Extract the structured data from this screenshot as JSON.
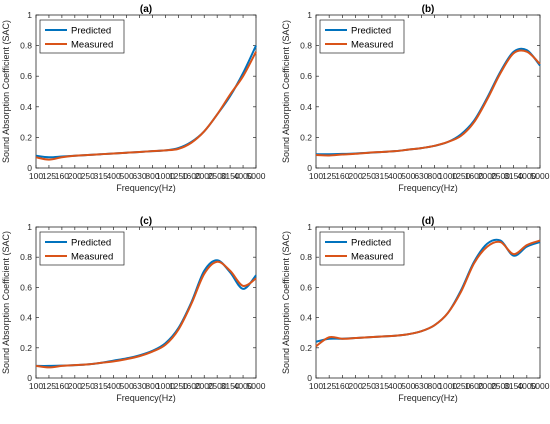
{
  "figure": {
    "background": "#ffffff",
    "series_colors": {
      "Predicted": "#0072BD",
      "Measured": "#D95319"
    }
  },
  "chart_data": [
    {
      "type": "line",
      "title": "(a)",
      "xlabel": "Frequency(Hz)",
      "ylabel": "Sound Absorption Coefficient (SAC)",
      "categories": [
        "100",
        "125",
        "160",
        "200",
        "250",
        "315",
        "400",
        "500",
        "630",
        "800",
        "1000",
        "1250",
        "1600",
        "2000",
        "2500",
        "3150",
        "4000",
        "5000"
      ],
      "ylim": [
        0,
        1
      ],
      "yticks": [
        "0",
        "0.2",
        "0.4",
        "0.6",
        "0.8",
        "1"
      ],
      "legend": "top-left",
      "grid": false,
      "series": [
        {
          "name": "Predicted",
          "values": [
            0.08,
            0.07,
            0.075,
            0.08,
            0.085,
            0.09,
            0.095,
            0.1,
            0.105,
            0.11,
            0.115,
            0.13,
            0.17,
            0.24,
            0.35,
            0.47,
            0.62,
            0.8
          ]
        },
        {
          "name": "Measured",
          "values": [
            0.07,
            0.055,
            0.07,
            0.08,
            0.085,
            0.09,
            0.095,
            0.1,
            0.105,
            0.11,
            0.115,
            0.125,
            0.165,
            0.24,
            0.35,
            0.48,
            0.6,
            0.76
          ]
        }
      ]
    },
    {
      "type": "line",
      "title": "(b)",
      "xlabel": "Frequency(Hz)",
      "ylabel": "Sound Absorption Coefficient (SAC)",
      "categories": [
        "100",
        "125",
        "160",
        "200",
        "250",
        "315",
        "400",
        "500",
        "630",
        "800",
        "1000",
        "1250",
        "1600",
        "2000",
        "2500",
        "3150",
        "4000",
        "5000"
      ],
      "ylim": [
        0,
        1
      ],
      "yticks": [
        "0",
        "0.2",
        "0.4",
        "0.6",
        "0.8",
        "1"
      ],
      "legend": "top-left",
      "grid": false,
      "series": [
        {
          "name": "Predicted",
          "values": [
            0.09,
            0.09,
            0.092,
            0.095,
            0.1,
            0.105,
            0.11,
            0.12,
            0.13,
            0.145,
            0.17,
            0.22,
            0.31,
            0.46,
            0.63,
            0.76,
            0.77,
            0.67
          ]
        },
        {
          "name": "Measured",
          "values": [
            0.085,
            0.082,
            0.088,
            0.093,
            0.1,
            0.105,
            0.11,
            0.12,
            0.13,
            0.145,
            0.17,
            0.21,
            0.3,
            0.45,
            0.62,
            0.75,
            0.76,
            0.68
          ]
        }
      ]
    },
    {
      "type": "line",
      "title": "(c)",
      "xlabel": "Frequency(Hz)",
      "ylabel": "Sound Absorption Coefficient (SAC)",
      "categories": [
        "100",
        "125",
        "160",
        "200",
        "250",
        "315",
        "400",
        "500",
        "630",
        "800",
        "1000",
        "1250",
        "1600",
        "2000",
        "2500",
        "3150",
        "4000",
        "5000"
      ],
      "ylim": [
        0,
        1
      ],
      "yticks": [
        "0",
        "0.2",
        "0.4",
        "0.6",
        "0.8",
        "1"
      ],
      "legend": "top-left",
      "grid": false,
      "series": [
        {
          "name": "Predicted",
          "values": [
            0.08,
            0.08,
            0.082,
            0.085,
            0.09,
            0.1,
            0.115,
            0.13,
            0.15,
            0.18,
            0.23,
            0.33,
            0.5,
            0.71,
            0.78,
            0.7,
            0.59,
            0.68
          ]
        },
        {
          "name": "Measured",
          "values": [
            0.08,
            0.07,
            0.08,
            0.085,
            0.09,
            0.1,
            0.11,
            0.125,
            0.145,
            0.175,
            0.22,
            0.32,
            0.49,
            0.69,
            0.77,
            0.71,
            0.61,
            0.66
          ]
        }
      ]
    },
    {
      "type": "line",
      "title": "(d)",
      "xlabel": "Frequency(Hz)",
      "ylabel": "Sound Absorption Coefficient (SAC)",
      "categories": [
        "100",
        "125",
        "160",
        "200",
        "250",
        "315",
        "400",
        "500",
        "630",
        "800",
        "1000",
        "1250",
        "1600",
        "2000",
        "2500",
        "3150",
        "4000",
        "5000"
      ],
      "ylim": [
        0,
        1
      ],
      "yticks": [
        "0",
        "0.2",
        "0.4",
        "0.6",
        "0.8",
        "1"
      ],
      "legend": "top-left",
      "grid": false,
      "series": [
        {
          "name": "Predicted",
          "values": [
            0.24,
            0.26,
            0.26,
            0.265,
            0.27,
            0.275,
            0.28,
            0.29,
            0.31,
            0.35,
            0.43,
            0.58,
            0.77,
            0.89,
            0.91,
            0.81,
            0.87,
            0.9
          ]
        },
        {
          "name": "Measured",
          "values": [
            0.21,
            0.27,
            0.26,
            0.265,
            0.27,
            0.275,
            0.28,
            0.29,
            0.31,
            0.35,
            0.43,
            0.57,
            0.76,
            0.87,
            0.9,
            0.82,
            0.88,
            0.91
          ]
        }
      ]
    }
  ]
}
